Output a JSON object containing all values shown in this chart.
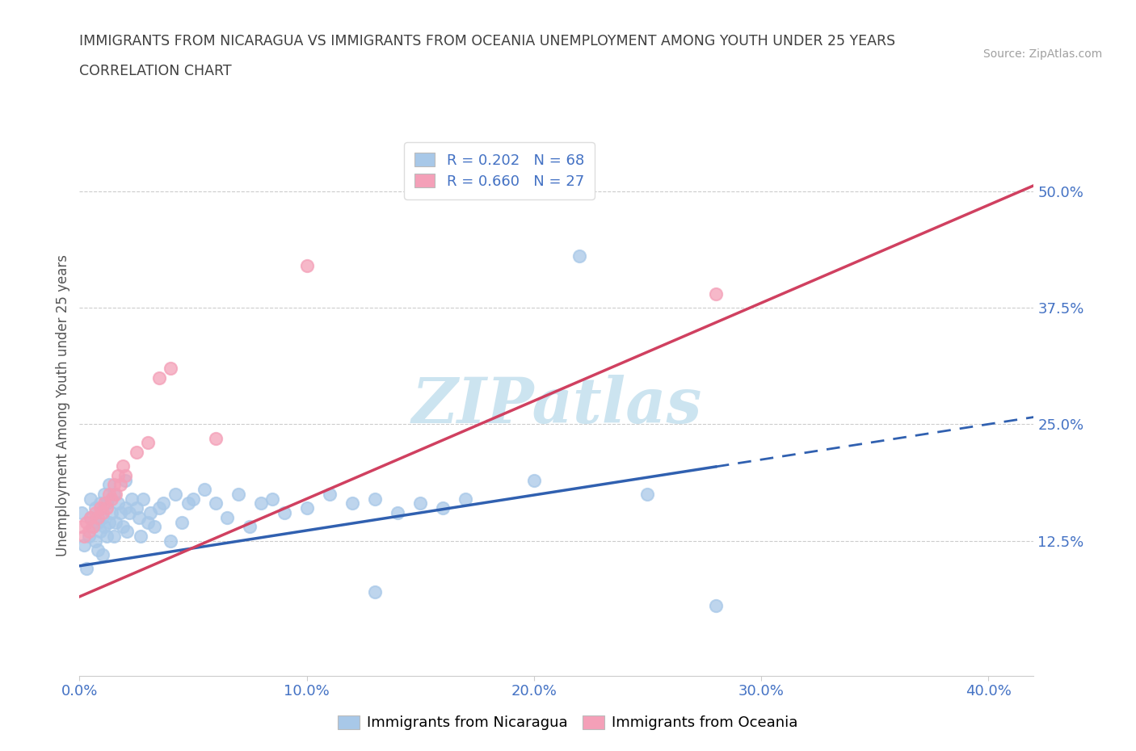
{
  "title_line1": "IMMIGRANTS FROM NICARAGUA VS IMMIGRANTS FROM OCEANIA UNEMPLOYMENT AMONG YOUTH UNDER 25 YEARS",
  "title_line2": "CORRELATION CHART",
  "source": "Source: ZipAtlas.com",
  "ylabel": "Unemployment Among Youth under 25 years",
  "watermark": "ZIPatlas",
  "legend_nicaragua": "Immigrants from Nicaragua",
  "legend_oceania": "Immigrants from Oceania",
  "R_nicaragua": 0.202,
  "N_nicaragua": 68,
  "R_oceania": 0.66,
  "N_oceania": 27,
  "nicaragua_color": "#a8c8e8",
  "oceania_color": "#f4a0b8",
  "nicaragua_line_color": "#3060b0",
  "oceania_line_color": "#d04060",
  "xlim": [
    0.0,
    0.42
  ],
  "ylim": [
    -0.02,
    0.56
  ],
  "xticks": [
    0.0,
    0.1,
    0.2,
    0.3,
    0.4
  ],
  "yticks": [
    0.125,
    0.25,
    0.375,
    0.5
  ],
  "ytick_labels": [
    "12.5%",
    "25.0%",
    "37.5%",
    "50.0%"
  ],
  "xtick_labels": [
    "0.0%",
    "10.0%",
    "20.0%",
    "30.0%",
    "40.0%"
  ],
  "nicaragua_scatter_x": [
    0.001,
    0.002,
    0.003,
    0.004,
    0.005,
    0.005,
    0.006,
    0.007,
    0.007,
    0.008,
    0.008,
    0.009,
    0.009,
    0.01,
    0.01,
    0.011,
    0.011,
    0.012,
    0.012,
    0.013,
    0.013,
    0.014,
    0.015,
    0.015,
    0.016,
    0.017,
    0.018,
    0.019,
    0.02,
    0.02,
    0.021,
    0.022,
    0.023,
    0.025,
    0.026,
    0.027,
    0.028,
    0.03,
    0.031,
    0.033,
    0.035,
    0.037,
    0.04,
    0.042,
    0.045,
    0.048,
    0.05,
    0.055,
    0.06,
    0.065,
    0.07,
    0.075,
    0.08,
    0.085,
    0.09,
    0.1,
    0.11,
    0.12,
    0.13,
    0.14,
    0.15,
    0.16,
    0.17,
    0.2,
    0.22,
    0.25,
    0.13,
    0.28
  ],
  "nicaragua_scatter_y": [
    0.155,
    0.12,
    0.095,
    0.13,
    0.15,
    0.17,
    0.14,
    0.125,
    0.16,
    0.115,
    0.145,
    0.135,
    0.165,
    0.11,
    0.15,
    0.14,
    0.175,
    0.13,
    0.165,
    0.145,
    0.185,
    0.155,
    0.13,
    0.175,
    0.145,
    0.165,
    0.155,
    0.14,
    0.16,
    0.19,
    0.135,
    0.155,
    0.17,
    0.16,
    0.15,
    0.13,
    0.17,
    0.145,
    0.155,
    0.14,
    0.16,
    0.165,
    0.125,
    0.175,
    0.145,
    0.165,
    0.17,
    0.18,
    0.165,
    0.15,
    0.175,
    0.14,
    0.165,
    0.17,
    0.155,
    0.16,
    0.175,
    0.165,
    0.17,
    0.155,
    0.165,
    0.16,
    0.17,
    0.19,
    0.43,
    0.175,
    0.07,
    0.055
  ],
  "oceania_scatter_x": [
    0.001,
    0.002,
    0.003,
    0.004,
    0.005,
    0.006,
    0.007,
    0.008,
    0.009,
    0.01,
    0.011,
    0.012,
    0.013,
    0.014,
    0.015,
    0.016,
    0.017,
    0.018,
    0.019,
    0.02,
    0.025,
    0.03,
    0.035,
    0.04,
    0.06,
    0.28,
    0.1
  ],
  "oceania_scatter_y": [
    0.14,
    0.13,
    0.145,
    0.135,
    0.15,
    0.14,
    0.155,
    0.15,
    0.16,
    0.155,
    0.165,
    0.16,
    0.175,
    0.17,
    0.185,
    0.175,
    0.195,
    0.185,
    0.205,
    0.195,
    0.22,
    0.23,
    0.3,
    0.31,
    0.235,
    0.39,
    0.42
  ],
  "bg_color": "#ffffff",
  "grid_color": "#cccccc",
  "title_color": "#404040",
  "source_color": "#a0a0a0",
  "watermark_color": "#cce4f0",
  "tick_color": "#4472c4",
  "legend_text_color": "#4472c4",
  "nicaragua_line_solid_end": 0.28,
  "nicaragua_line_dash_start": 0.28,
  "nicaragua_line_dash_end": 0.42,
  "oceania_line_start": 0.0,
  "oceania_line_end": 0.42,
  "nicaragua_intercept": 0.098,
  "nicaragua_slope": 0.38,
  "oceania_intercept": 0.065,
  "oceania_slope": 1.05
}
